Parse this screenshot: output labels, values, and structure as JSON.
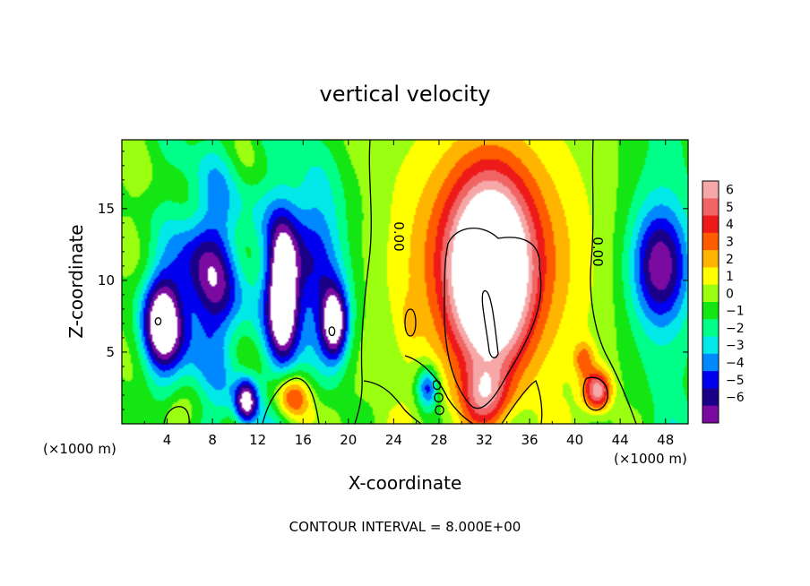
{
  "chart_data": {
    "type": "heatmap",
    "title": "vertical velocity",
    "xlabel": "X-coordinate",
    "ylabel": "Z-coordinate",
    "x_unit_left": "(×1000 m)",
    "x_unit_right": "(×1000 m)",
    "footer": "CONTOUR INTERVAL = 8.000E+00",
    "xlim": [
      0,
      50
    ],
    "ylim": [
      0,
      19.8
    ],
    "x_ticks": [
      4,
      8,
      12,
      16,
      20,
      24,
      28,
      32,
      36,
      40,
      44,
      48
    ],
    "y_ticks": [
      5,
      10,
      15
    ],
    "colorbar": {
      "levels": [
        6,
        5,
        4,
        3,
        2,
        1,
        0,
        -1,
        -2,
        -3,
        -4,
        -5,
        -6
      ],
      "colors": [
        "#f6a8a8",
        "#f06464",
        "#ee1a1a",
        "#ff5c00",
        "#ffb400",
        "#ffff00",
        "#9aff10",
        "#14e614",
        "#00ff88",
        "#00e8e8",
        "#0088ff",
        "#0000ee",
        "#1a0088",
        "#7a0aa0"
      ]
    },
    "contour_line_label": "0.00",
    "features": [
      {
        "kind": "updraft_core",
        "x": 32.5,
        "z": 10.2,
        "sx": 3.2,
        "sz": 6.2,
        "value": 7.5
      },
      {
        "kind": "updraft_shell",
        "x": 32.5,
        "z": 11.5,
        "sx": 6.5,
        "sz": 7.5,
        "value": 4.2
      },
      {
        "kind": "updraft_base",
        "x": 32.0,
        "z": 2.0,
        "sx": 2.0,
        "sz": 2.0,
        "value": 3.5
      },
      {
        "kind": "updraft",
        "x": 15.0,
        "z": 1.8,
        "sx": 1.6,
        "sz": 1.6,
        "value": 4.0
      },
      {
        "kind": "updraft",
        "x": 42.0,
        "z": 2.3,
        "sx": 1.2,
        "sz": 1.4,
        "value": 5.5
      },
      {
        "kind": "updraft",
        "x": 40.8,
        "z": 4.5,
        "sx": 0.9,
        "sz": 1.2,
        "value": 2.5
      },
      {
        "kind": "updraft",
        "x": 25.5,
        "z": 7.3,
        "sx": 0.8,
        "sz": 1.5,
        "value": 1.0
      },
      {
        "kind": "updraft",
        "x": 5.0,
        "z": 0.5,
        "sx": 1.2,
        "sz": 1.2,
        "value": 1.0
      },
      {
        "kind": "downdraft",
        "x": 3.5,
        "z": 7.0,
        "sx": 1.8,
        "sz": 3.5,
        "value": -7.0
      },
      {
        "kind": "downdraft",
        "x": 11.0,
        "z": 1.5,
        "sx": 1.0,
        "sz": 1.6,
        "value": -6.5
      },
      {
        "kind": "downdraft",
        "x": 14.2,
        "z": 9.0,
        "sx": 1.3,
        "sz": 4.5,
        "value": -7.0
      },
      {
        "kind": "downdraft",
        "x": 18.8,
        "z": 7.0,
        "sx": 1.2,
        "sz": 2.5,
        "value": -6.5
      },
      {
        "kind": "downdraft",
        "x": 7.5,
        "z": 10.0,
        "sx": 3.0,
        "sz": 6.0,
        "value": -4.5
      },
      {
        "kind": "downdraft",
        "x": 16.5,
        "z": 11.0,
        "sx": 3.5,
        "sz": 7.0,
        "value": -4.0
      },
      {
        "kind": "downdraft",
        "x": 27.0,
        "z": 2.5,
        "sx": 1.0,
        "sz": 1.5,
        "value": -4.5
      },
      {
        "kind": "downdraft",
        "x": 47.5,
        "z": 11.0,
        "sx": 2.5,
        "sz": 4.0,
        "value": -5.0
      }
    ]
  }
}
